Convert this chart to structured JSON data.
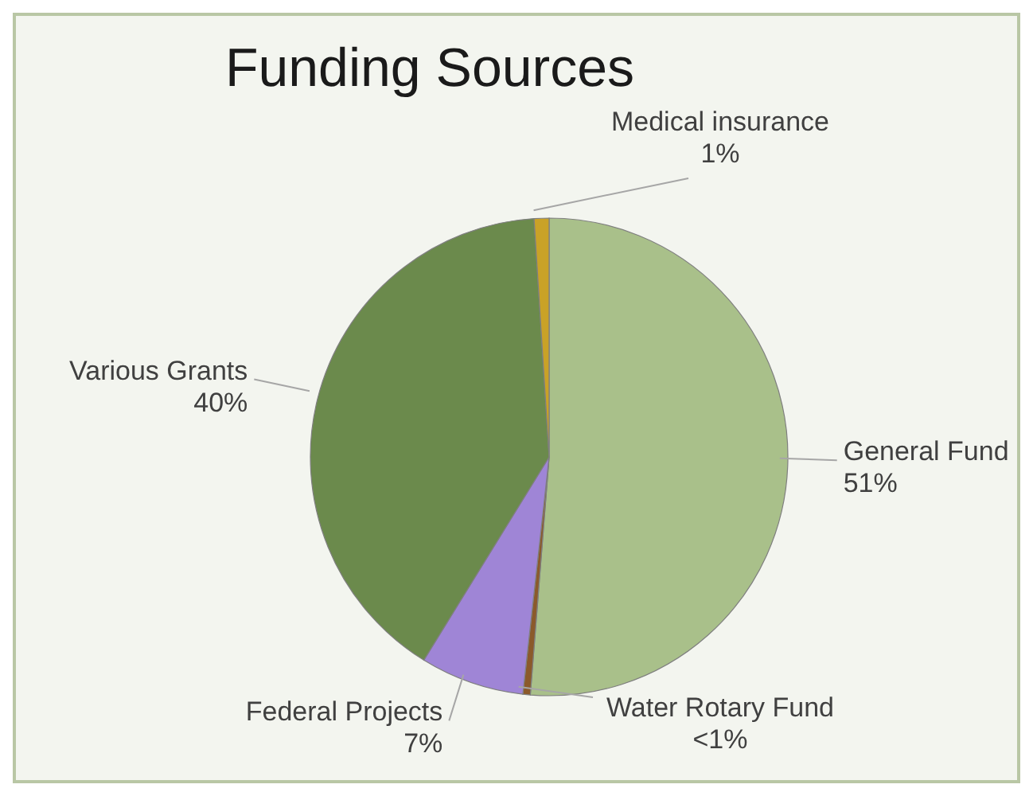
{
  "chart_data": {
    "type": "pie",
    "title": "Funding Sources",
    "categories": [
      "General Fund",
      "Water Rotary Fund",
      "Federal Projects",
      "Various Grants",
      "Medical insurance"
    ],
    "values": [
      51,
      0.5,
      7,
      40,
      1
    ],
    "value_labels": [
      "51%",
      "<1%",
      "7%",
      "40%",
      "1%"
    ],
    "colors": [
      "#a9c08a",
      "#8b5a2b",
      "#9f85d6",
      "#6b8a4c",
      "#c9a227"
    ]
  }
}
